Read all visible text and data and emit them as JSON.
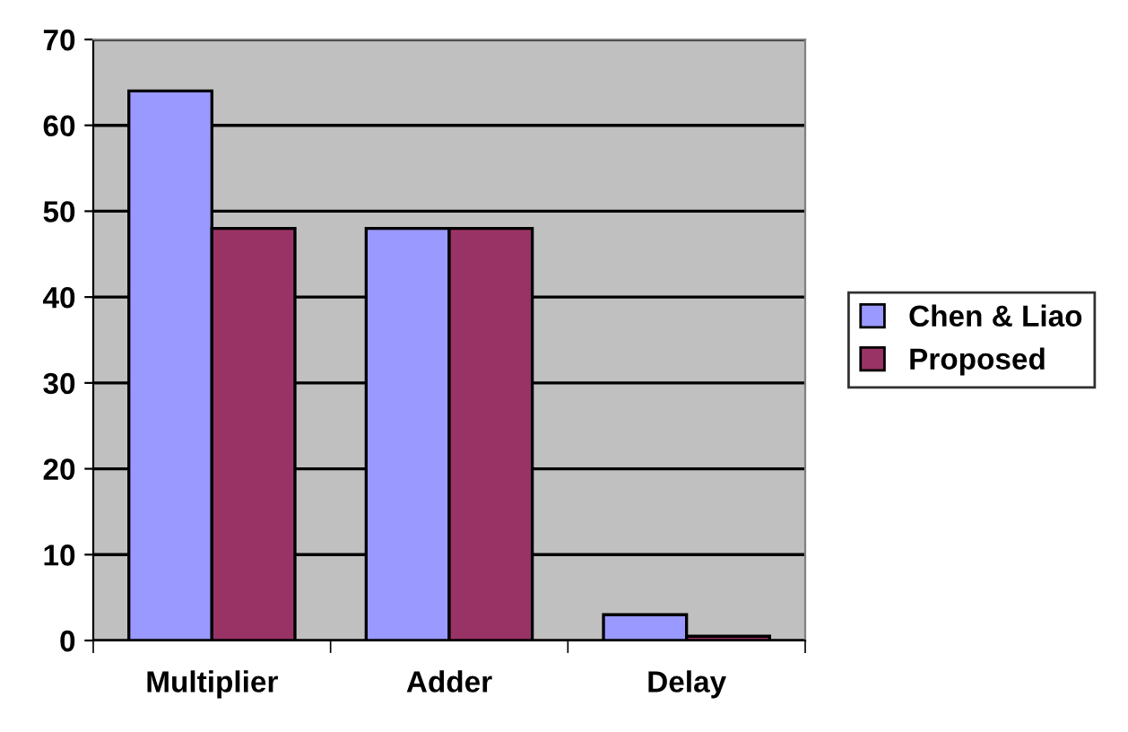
{
  "chart_data": {
    "type": "bar",
    "categories": [
      "Multiplier",
      "Adder",
      "Delay"
    ],
    "series": [
      {
        "name": "Chen & Liao",
        "color": "#9999ff",
        "values": [
          64,
          48,
          3
        ]
      },
      {
        "name": "Proposed",
        "color": "#993366",
        "values": [
          48,
          48,
          0.5
        ]
      }
    ],
    "ylim": [
      0,
      70
    ],
    "yticks": [
      0,
      10,
      20,
      30,
      40,
      50,
      60,
      70
    ],
    "grid": "y",
    "legend": "right"
  }
}
